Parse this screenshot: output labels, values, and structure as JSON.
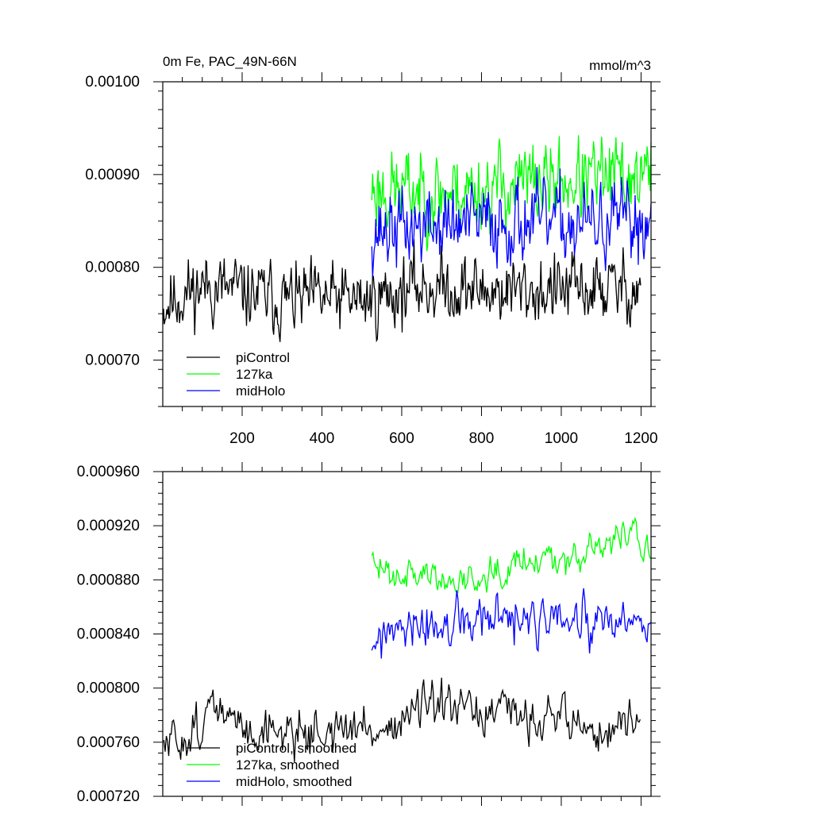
{
  "chart_data": [
    {
      "type": "line",
      "title": "0m Fe, PAC_49N-66N",
      "units": "mmol/m^3",
      "xlim": [
        1,
        1225
      ],
      "ylim": [
        0.00065,
        0.001
      ],
      "x_tick_labels": [
        "200",
        "400",
        "600",
        "800",
        "1000",
        "1200"
      ],
      "x_ticks": [
        200,
        400,
        600,
        800,
        1000,
        1200
      ],
      "y_tick_labels": [
        "0.00070",
        "0.00080",
        "0.00090",
        "0.00100"
      ],
      "y_ticks": [
        0.0007,
        0.0008,
        0.0009,
        0.001
      ],
      "series": [
        {
          "name": "piControl",
          "color": "#000000",
          "x_start": 1,
          "x_end": 1200,
          "base": 0.00077,
          "amp": 2.4e-05,
          "step": 2,
          "seed": 11,
          "anchors": [
            [
              1,
              0.00076
            ],
            [
              100,
              0.00078
            ],
            [
              300,
              0.000765
            ],
            [
              520,
              0.000765
            ],
            [
              650,
              0.00078
            ],
            [
              800,
              0.000775
            ],
            [
              1000,
              0.000775
            ],
            [
              1200,
              0.000778
            ]
          ]
        },
        {
          "name": "127ka",
          "color": "#00ff00",
          "x_start": 525,
          "x_end": 1225,
          "base": 0.00089,
          "amp": 2.8e-05,
          "step": 2,
          "seed": 23,
          "anchors": [
            [
              525,
              0.000885
            ],
            [
              700,
              0.00088
            ],
            [
              900,
              0.00089
            ],
            [
              1100,
              0.000895
            ],
            [
              1225,
              0.0009
            ]
          ]
        },
        {
          "name": "midHolo",
          "color": "#0000ff",
          "x_start": 525,
          "x_end": 1225,
          "base": 0.000845,
          "amp": 2.7e-05,
          "step": 2,
          "seed": 37,
          "anchors": [
            [
              525,
              0.00084
            ],
            [
              700,
              0.000845
            ],
            [
              900,
              0.00085
            ],
            [
              1100,
              0.000845
            ],
            [
              1225,
              0.00085
            ]
          ]
        }
      ],
      "legend": {
        "placement": "bottom-left",
        "entries": [
          "piControl",
          "127ka",
          "midHolo"
        ]
      }
    },
    {
      "type": "line",
      "title": "",
      "xlim": [
        1,
        1225
      ],
      "ylim": [
        0.00072,
        0.00096
      ],
      "x_ticks": [
        200,
        400,
        600,
        800,
        1000,
        1200
      ],
      "y_tick_labels": [
        "0.000720",
        "0.000760",
        "0.000800",
        "0.000840",
        "0.000880",
        "0.000920",
        "0.000960"
      ],
      "y_ticks": [
        0.00072,
        0.00076,
        0.0008,
        0.00084,
        0.00088,
        0.00092,
        0.00096
      ],
      "series": [
        {
          "name": "piControl, smoothed",
          "color": "#000000",
          "x_start": 1,
          "x_end": 1200,
          "base": 0.00077,
          "amp": 1.1e-05,
          "step": 3,
          "seed": 51,
          "anchors": [
            [
              1,
              0.000755
            ],
            [
              60,
              0.000765
            ],
            [
              130,
              0.000785
            ],
            [
              200,
              0.00077
            ],
            [
              400,
              0.000768
            ],
            [
              560,
              0.00077
            ],
            [
              650,
              0.000785
            ],
            [
              800,
              0.00078
            ],
            [
              1000,
              0.00078
            ],
            [
              1100,
              0.000765
            ],
            [
              1200,
              0.000778
            ]
          ]
        },
        {
          "name": "127ka, smoothed",
          "color": "#00ff00",
          "x_start": 525,
          "x_end": 1225,
          "base": 0.000885,
          "amp": 8e-06,
          "step": 3,
          "seed": 63,
          "anchors": [
            [
              525,
              0.00089
            ],
            [
              650,
              0.000885
            ],
            [
              700,
              0.000878
            ],
            [
              780,
              0.000882
            ],
            [
              880,
              0.000895
            ],
            [
              1000,
              0.000898
            ],
            [
              1100,
              0.000903
            ],
            [
              1180,
              0.00092
            ],
            [
              1225,
              0.000895
            ]
          ]
        },
        {
          "name": "midHolo, smoothed",
          "color": "#0000ff",
          "x_start": 525,
          "x_end": 1225,
          "base": 0.000845,
          "amp": 1.2e-05,
          "step": 3,
          "seed": 77,
          "anchors": [
            [
              525,
              0.000835
            ],
            [
              650,
              0.000842
            ],
            [
              800,
              0.00085
            ],
            [
              950,
              0.000848
            ],
            [
              1100,
              0.000845
            ],
            [
              1225,
              0.000845
            ]
          ]
        }
      ],
      "legend": {
        "placement": "bottom-left",
        "entries": [
          "piControl, smoothed",
          "127ka, smoothed",
          "midHolo, smoothed"
        ]
      }
    }
  ]
}
